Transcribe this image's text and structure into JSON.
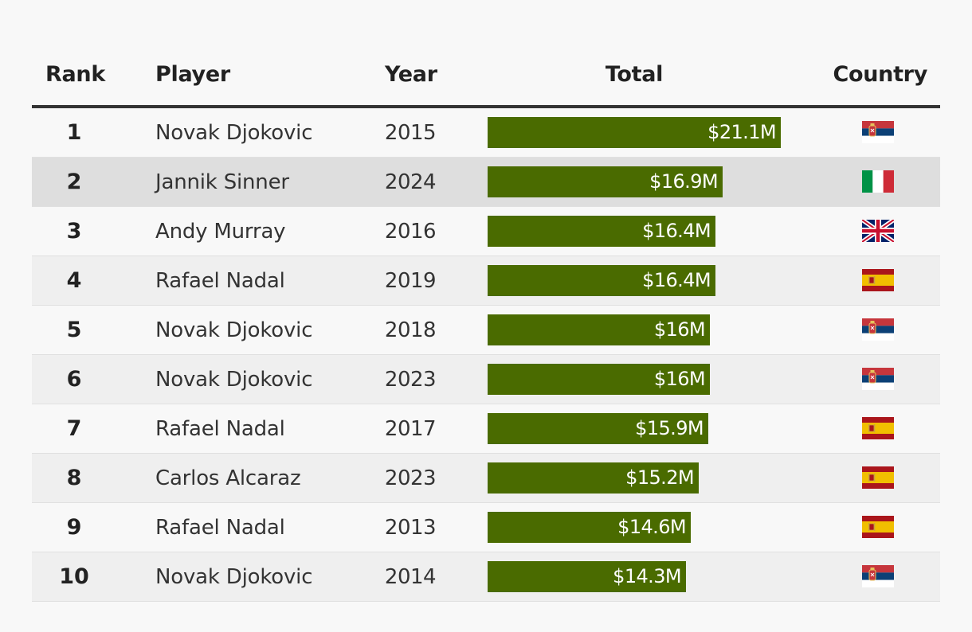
{
  "table": {
    "headers": {
      "rank": "Rank",
      "player": "Player",
      "year": "Year",
      "total": "Total",
      "country": "Country"
    }
  },
  "colors": {
    "bar": "#4a6b00",
    "highlight_row": "#dedede"
  },
  "chart_data": {
    "type": "table",
    "bar_max": 21.1,
    "rows": [
      {
        "rank": "1",
        "player": "Novak Djokovic",
        "year": "2015",
        "total": 21.1,
        "total_label": "$21.1M",
        "country": "serbia-flag"
      },
      {
        "rank": "2",
        "player": "Jannik Sinner",
        "year": "2024",
        "total": 16.9,
        "total_label": "$16.9M",
        "country": "italy-flag"
      },
      {
        "rank": "3",
        "player": "Andy Murray",
        "year": "2016",
        "total": 16.4,
        "total_label": "$16.4M",
        "country": "uk-flag"
      },
      {
        "rank": "4",
        "player": "Rafael Nadal",
        "year": "2019",
        "total": 16.4,
        "total_label": "$16.4M",
        "country": "spain-flag"
      },
      {
        "rank": "5",
        "player": "Novak Djokovic",
        "year": "2018",
        "total": 16.0,
        "total_label": "$16M",
        "country": "serbia-flag"
      },
      {
        "rank": "6",
        "player": "Novak Djokovic",
        "year": "2023",
        "total": 16.0,
        "total_label": "$16M",
        "country": "serbia-flag"
      },
      {
        "rank": "7",
        "player": "Rafael Nadal",
        "year": "2017",
        "total": 15.9,
        "total_label": "$15.9M",
        "country": "spain-flag"
      },
      {
        "rank": "8",
        "player": "Carlos Alcaraz",
        "year": "2023",
        "total": 15.2,
        "total_label": "$15.2M",
        "country": "spain-flag"
      },
      {
        "rank": "9",
        "player": "Rafael Nadal",
        "year": "2013",
        "total": 14.6,
        "total_label": "$14.6M",
        "country": "spain-flag"
      },
      {
        "rank": "10",
        "player": "Novak Djokovic",
        "year": "2014",
        "total": 14.3,
        "total_label": "$14.3M",
        "country": "serbia-flag"
      }
    ]
  }
}
